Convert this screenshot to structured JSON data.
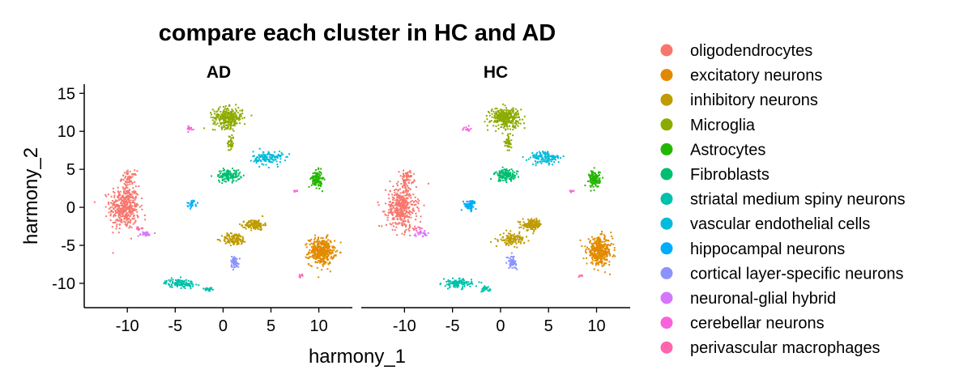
{
  "chart_data": {
    "type": "scatter",
    "title": "compare each cluster in HC and AD",
    "xlabel": "harmony_1",
    "ylabel": "harmony_2",
    "facets": [
      "AD",
      "HC"
    ],
    "xlim": [
      -14.5,
      13.5
    ],
    "ylim": [
      -13.2,
      16.2
    ],
    "xticks": [
      -10,
      -5,
      0,
      5,
      10
    ],
    "yticks": [
      -10,
      -5,
      0,
      5,
      10,
      15
    ],
    "legend_position": "right",
    "series": [
      {
        "name": "oligodendrocytes",
        "color": "#F8766D",
        "clusters": {
          "AD": [
            {
              "cx": -10.3,
              "cy": 0,
              "sx": 1.4,
              "sy": 2.6,
              "n": 420
            },
            {
              "cx": -9.8,
              "cy": 3.8,
              "sx": 0.7,
              "sy": 0.9,
              "n": 60
            }
          ],
          "HC": [
            {
              "cx": -10.3,
              "cy": 0,
              "sx": 1.4,
              "sy": 2.6,
              "n": 420
            },
            {
              "cx": -9.8,
              "cy": 3.8,
              "sx": 0.7,
              "sy": 0.9,
              "n": 60
            }
          ]
        }
      },
      {
        "name": "excitatory neurons",
        "color": "#E18A00",
        "clusters": {
          "AD": [
            {
              "cx": 10.3,
              "cy": -5.8,
              "sx": 1.2,
              "sy": 1.6,
              "n": 380
            }
          ],
          "HC": [
            {
              "cx": 10.3,
              "cy": -5.8,
              "sx": 1.2,
              "sy": 1.6,
              "n": 380
            }
          ]
        }
      },
      {
        "name": "inhibitory neurons",
        "color": "#BE9C00",
        "clusters": {
          "AD": [
            {
              "cx": 3.3,
              "cy": -2.3,
              "sx": 0.9,
              "sy": 0.6,
              "n": 140
            },
            {
              "cx": 1.2,
              "cy": -4.2,
              "sx": 1.2,
              "sy": 0.7,
              "n": 120
            }
          ],
          "HC": [
            {
              "cx": 3.3,
              "cy": -2.3,
              "sx": 0.9,
              "sy": 0.6,
              "n": 140
            },
            {
              "cx": 1.2,
              "cy": -4.2,
              "sx": 1.2,
              "sy": 0.7,
              "n": 120
            }
          ]
        }
      },
      {
        "name": "Microglia",
        "color": "#8CAB00",
        "clusters": {
          "AD": [
            {
              "cx": 0.5,
              "cy": 11.8,
              "sx": 1.4,
              "sy": 1.2,
              "n": 300
            },
            {
              "cx": 0.8,
              "cy": 8.5,
              "sx": 0.3,
              "sy": 1.0,
              "n": 40
            }
          ],
          "HC": [
            {
              "cx": 0.5,
              "cy": 11.8,
              "sx": 1.4,
              "sy": 1.2,
              "n": 300
            },
            {
              "cx": 0.8,
              "cy": 8.5,
              "sx": 0.3,
              "sy": 1.0,
              "n": 40
            }
          ]
        }
      },
      {
        "name": "Astrocytes",
        "color": "#24B700",
        "clusters": {
          "AD": [
            {
              "cx": 9.8,
              "cy": 3.7,
              "sx": 0.5,
              "sy": 1.0,
              "n": 130
            }
          ],
          "HC": [
            {
              "cx": 9.8,
              "cy": 3.7,
              "sx": 0.5,
              "sy": 1.0,
              "n": 130
            }
          ]
        }
      },
      {
        "name": "Fibroblasts",
        "color": "#00BE70",
        "clusters": {
          "AD": [
            {
              "cx": 0.6,
              "cy": 4.2,
              "sx": 1.1,
              "sy": 0.7,
              "n": 130
            }
          ],
          "HC": [
            {
              "cx": 0.6,
              "cy": 4.2,
              "sx": 1.1,
              "sy": 0.7,
              "n": 130
            }
          ]
        }
      },
      {
        "name": "striatal medium spiny neurons",
        "color": "#00C1AB",
        "clusters": {
          "AD": [
            {
              "cx": -4.5,
              "cy": -10,
              "sx": 1.4,
              "sy": 0.5,
              "n": 120
            },
            {
              "cx": -1.5,
              "cy": -10.8,
              "sx": 0.5,
              "sy": 0.3,
              "n": 25
            }
          ],
          "HC": [
            {
              "cx": -4.5,
              "cy": -10,
              "sx": 1.4,
              "sy": 0.5,
              "n": 120
            },
            {
              "cx": -1.5,
              "cy": -10.8,
              "sx": 0.5,
              "sy": 0.3,
              "n": 25
            }
          ]
        }
      },
      {
        "name": "vascular endothelial cells",
        "color": "#00BBDA",
        "clusters": {
          "AD": [
            {
              "cx": 4.7,
              "cy": 6.5,
              "sx": 1.4,
              "sy": 0.8,
              "n": 130
            }
          ],
          "HC": [
            {
              "cx": 4.7,
              "cy": 6.5,
              "sx": 1.4,
              "sy": 0.8,
              "n": 130
            }
          ]
        }
      },
      {
        "name": "hippocampal neurons",
        "color": "#00ACFC",
        "clusters": {
          "AD": [
            {
              "cx": -3.2,
              "cy": 0.5,
              "sx": 0.5,
              "sy": 0.5,
              "n": 25
            }
          ],
          "HC": [
            {
              "cx": -3.2,
              "cy": 0.3,
              "sx": 0.6,
              "sy": 0.6,
              "n": 70
            }
          ]
        }
      },
      {
        "name": "cortical layer-specific neurons",
        "color": "#8B93FF",
        "clusters": {
          "AD": [
            {
              "cx": 1.2,
              "cy": -7.2,
              "sx": 0.4,
              "sy": 0.7,
              "n": 60
            }
          ],
          "HC": [
            {
              "cx": 1.2,
              "cy": -7.2,
              "sx": 0.4,
              "sy": 0.7,
              "n": 60
            }
          ]
        }
      },
      {
        "name": "neuronal-glial hybrid",
        "color": "#D575FE",
        "clusters": {
          "AD": [
            {
              "cx": -8.2,
              "cy": -3.5,
              "sx": 0.7,
              "sy": 0.3,
              "n": 25
            }
          ],
          "HC": [
            {
              "cx": -8.2,
              "cy": -3.5,
              "sx": 0.7,
              "sy": 0.3,
              "n": 25
            }
          ]
        }
      },
      {
        "name": "cerebellar neurons",
        "color": "#F962DD",
        "clusters": {
          "AD": [
            {
              "cx": -3.5,
              "cy": 10.3,
              "sx": 0.5,
              "sy": 0.3,
              "n": 15
            },
            {
              "cx": 7.5,
              "cy": 2.2,
              "sx": 0.3,
              "sy": 0.2,
              "n": 6
            }
          ],
          "HC": [
            {
              "cx": -3.5,
              "cy": 10.3,
              "sx": 0.5,
              "sy": 0.3,
              "n": 15
            },
            {
              "cx": 7.5,
              "cy": 2.2,
              "sx": 0.3,
              "sy": 0.2,
              "n": 6
            }
          ]
        }
      },
      {
        "name": "perivascular macrophages",
        "color": "#FF65AC",
        "clusters": {
          "AD": [
            {
              "cx": -8.7,
              "cy": -2.8,
              "sx": 0.4,
              "sy": 0.2,
              "n": 10
            },
            {
              "cx": 8.3,
              "cy": -9.0,
              "sx": 0.3,
              "sy": 0.2,
              "n": 6
            }
          ],
          "HC": [
            {
              "cx": -8.7,
              "cy": -2.8,
              "sx": 0.4,
              "sy": 0.2,
              "n": 10
            },
            {
              "cx": 8.3,
              "cy": -9.0,
              "sx": 0.3,
              "sy": 0.2,
              "n": 6
            }
          ]
        }
      }
    ]
  }
}
